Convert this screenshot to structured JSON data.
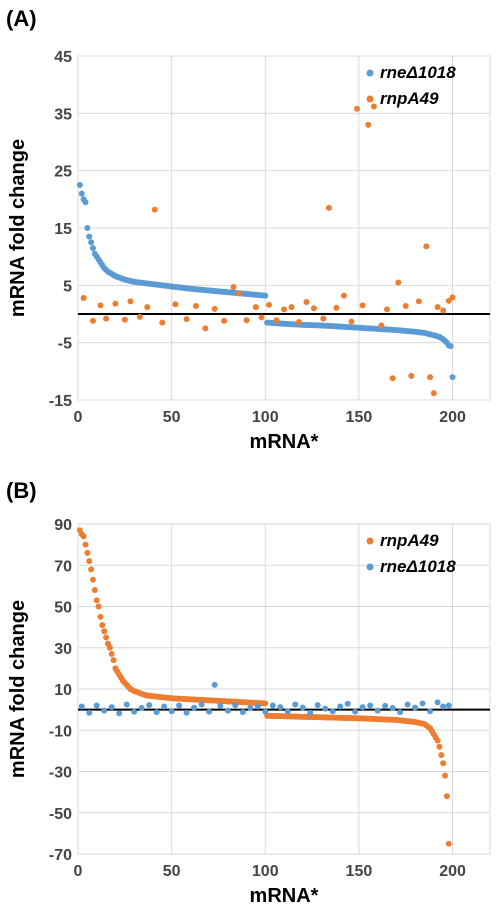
{
  "chart_data": [
    {
      "type": "scatter",
      "panel_label": "(A)",
      "xlabel": "mRNA*",
      "ylabel": "mRNA fold change",
      "xlim": [
        0,
        220
      ],
      "ylim": [
        -15,
        45
      ],
      "xticks": [
        0,
        50,
        100,
        150,
        200
      ],
      "yticks": [
        45,
        35,
        25,
        15,
        5,
        -5,
        -15
      ],
      "grid": true,
      "legend_position": "top-right",
      "series": [
        {
          "name": "rneΔ1018",
          "color": "#5b9bd5",
          "segments": [
            {
              "x": [
                1,
                2,
                3,
                4,
                5,
                6,
                7,
                8,
                9,
                10,
                12,
                14,
                16,
                18,
                20,
                25,
                30,
                40,
                50,
                60,
                70,
                80,
                90,
                100
              ],
              "y": [
                22.5,
                21,
                20,
                19.5,
                15,
                13.5,
                12.5,
                11.5,
                10.5,
                10,
                9,
                8,
                7.4,
                7,
                6.6,
                6,
                5.6,
                5.2,
                4.8,
                4.4,
                4.1,
                3.8,
                3.5,
                3.2
              ]
            },
            {
              "x": [
                101,
                110,
                120,
                130,
                140,
                150,
                160,
                170,
                180,
                185,
                190,
                193,
                195,
                197,
                198,
                199,
                200
              ],
              "y": [
                -1.5,
                -1.7,
                -1.9,
                -2.0,
                -2.2,
                -2.4,
                -2.6,
                -2.8,
                -3.1,
                -3.3,
                -3.7,
                -4.0,
                -4.4,
                -5.0,
                -5.5,
                -5.6,
                -11.0
              ]
            }
          ]
        },
        {
          "name": "rnpA49",
          "color": "#ed7d31",
          "points": {
            "x": [
              3,
              8,
              12,
              15,
              20,
              25,
              28,
              33,
              37,
              41,
              45,
              52,
              58,
              63,
              68,
              73,
              78,
              83,
              86,
              90,
              95,
              98,
              102,
              106,
              110,
              114,
              118,
              122,
              126,
              131,
              134,
              138,
              142,
              146,
              149,
              152,
              155,
              158,
              162,
              165,
              168,
              171,
              175,
              178,
              182,
              186,
              188,
              190,
              192,
              195,
              198,
              200
            ],
            "y": [
              2.8,
              -1.2,
              1.5,
              -0.8,
              1.8,
              -1.0,
              2.2,
              -0.5,
              1.2,
              18.2,
              -1.5,
              1.7,
              -0.9,
              1.4,
              -2.5,
              0.9,
              -1.2,
              4.7,
              3.6,
              -1.1,
              1.2,
              -0.6,
              1.6,
              -1.1,
              0.8,
              1.2,
              -1.4,
              2.1,
              1.0,
              -0.8,
              18.5,
              1.1,
              3.2,
              -1.3,
              35.8,
              1.5,
              33.0,
              36.2,
              -2.0,
              0.8,
              -11.2,
              5.5,
              1.4,
              -10.8,
              2.2,
              11.8,
              -11.0,
              -13.8,
              1.2,
              0.6,
              2.3,
              2.9
            ]
          }
        }
      ]
    },
    {
      "type": "scatter",
      "panel_label": "(B)",
      "xlabel": "mRNA*",
      "ylabel": "mRNA fold change",
      "xlim": [
        0,
        220
      ],
      "ylim": [
        -70,
        90
      ],
      "xticks": [
        0,
        50,
        100,
        150,
        200
      ],
      "yticks": [
        90,
        70,
        50,
        30,
        10,
        -10,
        -30,
        -50,
        -70
      ],
      "grid": true,
      "legend_position": "top-right",
      "series": [
        {
          "name": "rnpA49",
          "color": "#ed7d31",
          "segments": [
            {
              "x": [
                1,
                2,
                3,
                4,
                5,
                6,
                7,
                8,
                9,
                10,
                11,
                12,
                13,
                14,
                15,
                16,
                17,
                18,
                19,
                20,
                22,
                24,
                26,
                28,
                30,
                33,
                36,
                40,
                45,
                50,
                60,
                70,
                80,
                90,
                100
              ],
              "y": [
                87,
                85,
                84,
                80,
                76,
                72,
                68,
                63,
                58,
                53,
                50,
                45,
                41,
                38,
                35,
                32,
                30,
                27,
                24,
                20,
                17,
                14,
                12,
                10,
                9,
                8,
                7,
                6.5,
                6,
                5.5,
                5,
                4.5,
                4,
                3.5,
                3
              ]
            },
            {
              "x": [
                101,
                110,
                120,
                130,
                140,
                150,
                160,
                170,
                175,
                180,
                185,
                188,
                190,
                192,
                193,
                194,
                195,
                196,
                197,
                198
              ],
              "y": [
                -3,
                -3.2,
                -3.5,
                -3.7,
                -4,
                -4.2,
                -4.6,
                -5,
                -5.5,
                -6,
                -7,
                -9,
                -12,
                -15,
                -18,
                -22,
                -26,
                -32,
                -42,
                -65
              ]
            }
          ]
        },
        {
          "name": "rneΔ1018",
          "color": "#5b9bd5",
          "points": {
            "x": [
              2,
              6,
              10,
              14,
              18,
              22,
              26,
              30,
              34,
              38,
              42,
              46,
              50,
              54,
              58,
              62,
              66,
              70,
              73,
              76,
              80,
              84,
              88,
              92,
              96,
              100,
              104,
              108,
              112,
              116,
              120,
              124,
              128,
              132,
              136,
              140,
              144,
              148,
              152,
              156,
              160,
              164,
              168,
              172,
              176,
              180,
              184,
              188,
              192,
              195,
              198
            ],
            "y": [
              1.5,
              -1.5,
              2.0,
              -0.5,
              1.2,
              -1.8,
              2.5,
              -1.0,
              0.8,
              2.2,
              -1.2,
              1.5,
              -0.8,
              2.0,
              -1.5,
              1.0,
              2.5,
              -1.0,
              12.0,
              1.8,
              -0.5,
              2.2,
              -1.2,
              0.8,
              1.5,
              -1.0,
              2.0,
              1.2,
              -0.8,
              2.5,
              1.0,
              -1.5,
              2.2,
              0.5,
              -0.8,
              1.5,
              2.8,
              -1.0,
              1.2,
              2.0,
              -0.5,
              1.8,
              0.8,
              -1.2,
              2.5,
              1.0,
              3.0,
              -0.8,
              3.5,
              1.5,
              2.0
            ]
          }
        }
      ]
    }
  ]
}
